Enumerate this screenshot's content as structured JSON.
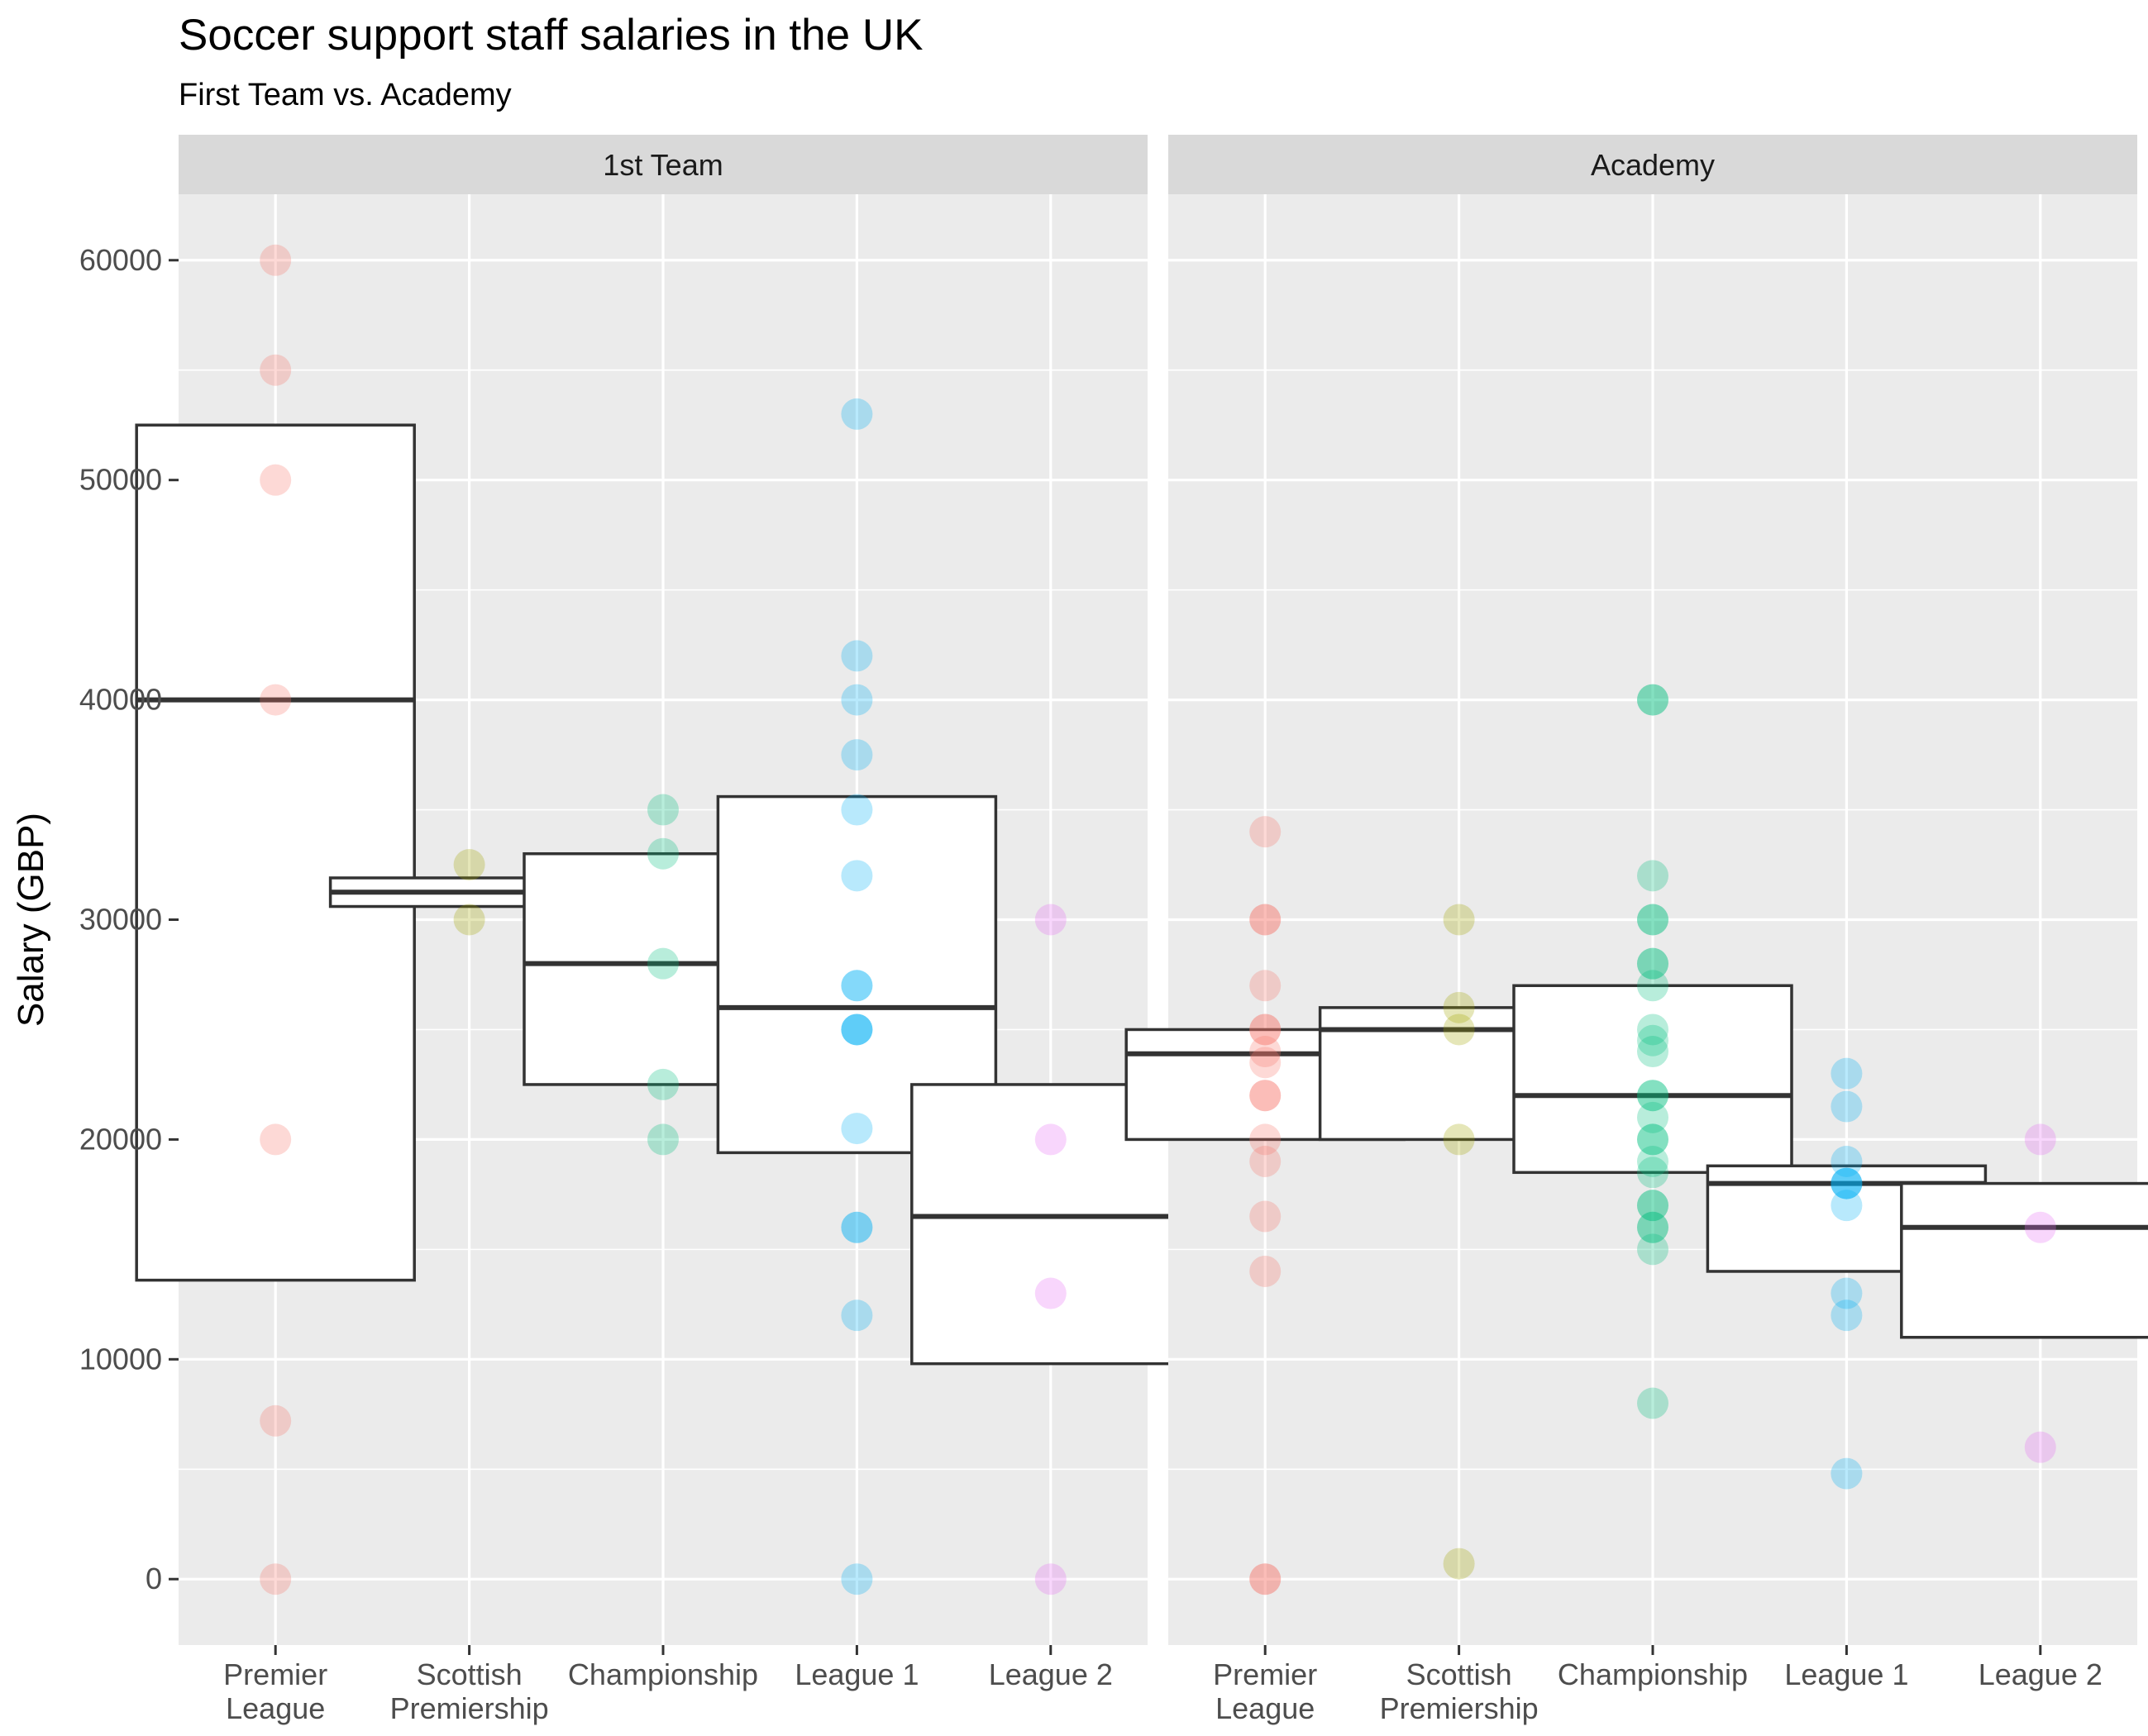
{
  "chart_data": {
    "type": "box",
    "title": "Soccer support staff salaries in the UK",
    "subtitle": "First Team vs. Academy",
    "ylabel": "Salary (GBP)",
    "ylim": [
      -3000,
      63000
    ],
    "yticks": [
      0,
      10000,
      20000,
      30000,
      40000,
      50000,
      60000
    ],
    "grid": true,
    "categories": [
      "Premier League",
      "Scottish Premiership",
      "Championship",
      "League 1",
      "League 2"
    ],
    "category_labels": [
      [
        "Premier",
        "League"
      ],
      [
        "Scottish",
        "Premiership"
      ],
      [
        "Championship"
      ],
      [
        "League 1"
      ],
      [
        "League 2"
      ]
    ],
    "colors": {
      "Premier League": "#F8766D",
      "Scottish Premiership": "#A3A500",
      "Championship": "#00BF7D",
      "League 1": "#00B0F6",
      "League 2": "#E76BF3"
    },
    "panels": [
      {
        "name": "1st Team",
        "boxes": {
          "Premier League": {
            "q1": 13600,
            "median": 40000,
            "q3": 52500
          },
          "Scottish Premiership": {
            "q1": 30600,
            "median": 31250,
            "q3": 31900
          },
          "Championship": {
            "q1": 22500,
            "median": 28000,
            "q3": 33000
          },
          "League 1": {
            "q1": 19400,
            "median": 26000,
            "q3": 35600
          },
          "League 2": {
            "q1": 9800,
            "median": 16500,
            "q3": 22500
          }
        },
        "points": {
          "Premier League": [
            60000,
            55000,
            50000,
            40000,
            20000,
            7200,
            0
          ],
          "Scottish Premiership": [
            32500,
            30000
          ],
          "Championship": [
            35000,
            33000,
            28000,
            22500,
            20000
          ],
          "League 1": [
            53000,
            42000,
            40000,
            37500,
            35000,
            32000,
            27000,
            27000,
            25000,
            25000,
            25000,
            20500,
            16000,
            16000,
            12000,
            0
          ],
          "League 2": [
            30000,
            20000,
            13000,
            0
          ]
        }
      },
      {
        "name": "Academy",
        "boxes": {
          "Premier League": {
            "q1": 20000,
            "median": 23900,
            "q3": 25000
          },
          "Scottish Premiership": {
            "q1": 20000,
            "median": 25000,
            "q3": 26000
          },
          "Championship": {
            "q1": 18500,
            "median": 22000,
            "q3": 27000
          },
          "League 1": {
            "q1": 14000,
            "median": 18000,
            "q3": 18800
          },
          "League 2": {
            "q1": 11000,
            "median": 16000,
            "q3": 18000
          }
        },
        "points": {
          "Premier League": [
            34000,
            30000,
            30000,
            27000,
            25000,
            25000,
            24000,
            23500,
            22000,
            22000,
            20000,
            19000,
            16500,
            14000,
            0,
            0
          ],
          "Scottish Premiership": [
            30000,
            26000,
            25000,
            20000,
            700
          ],
          "Championship": [
            40000,
            40000,
            32000,
            30000,
            30000,
            28000,
            28000,
            27000,
            25000,
            24500,
            24000,
            22000,
            22000,
            21000,
            20000,
            20000,
            19000,
            18500,
            17000,
            17000,
            16000,
            16000,
            15000,
            8000
          ],
          "League 1": [
            23000,
            21500,
            19000,
            18000,
            18000,
            18000,
            17000,
            13000,
            12000,
            4800
          ],
          "League 2": [
            20000,
            16000,
            6000
          ]
        }
      }
    ]
  }
}
